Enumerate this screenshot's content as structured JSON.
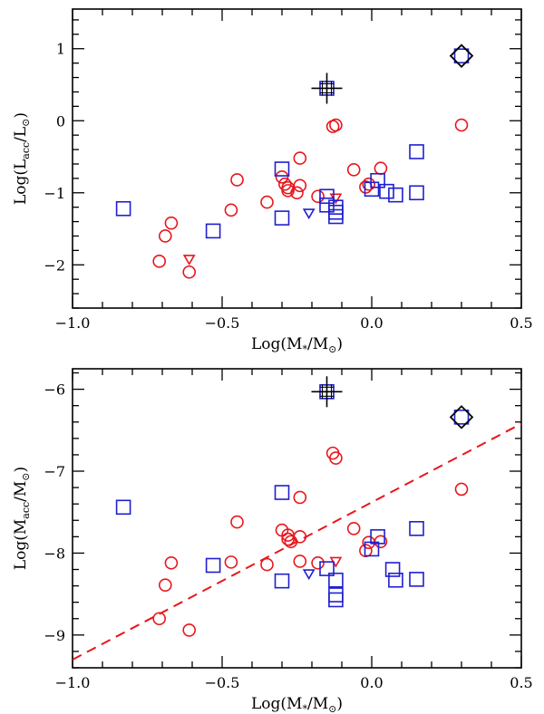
{
  "chart_data": [
    {
      "type": "scatter",
      "panel": "top",
      "xlabel": {
        "main": "Log(M",
        "sub": "*",
        "mid": "/M",
        "sub2": "⊙",
        "end": ")"
      },
      "ylabel": {
        "main": "Log(L",
        "sub": "acc",
        "mid": "/L",
        "sub2": "⊙",
        "end": ")"
      },
      "xlim": [
        -1.0,
        0.5
      ],
      "ylim": [
        -2.6,
        1.55
      ],
      "xticks": [
        -1.0,
        -0.5,
        0.0,
        0.5
      ],
      "xtick_labels": [
        "−1.0",
        "−0.5",
        "0.0",
        "0.5"
      ],
      "yticks": [
        -2,
        -1,
        0,
        1
      ],
      "ytick_labels": [
        "−2",
        "−1",
        "0",
        "1"
      ],
      "series": [
        {
          "name": "red circles",
          "marker": "circle",
          "color": "#e8161c",
          "x": [
            -0.71,
            -0.69,
            -0.67,
            -0.61,
            -0.47,
            -0.45,
            -0.35,
            -0.3,
            -0.29,
            -0.28,
            -0.28,
            -0.25,
            -0.24,
            -0.24,
            -0.18,
            -0.13,
            -0.12,
            -0.06,
            -0.02,
            -0.01,
            0.03,
            0.3
          ],
          "y": [
            -1.95,
            -1.6,
            -1.42,
            -2.1,
            -1.24,
            -0.82,
            -1.13,
            -0.78,
            -0.88,
            -0.93,
            -0.97,
            -1.0,
            -0.9,
            -0.52,
            -1.05,
            -0.08,
            -0.06,
            -0.68,
            -0.92,
            -0.88,
            -0.66,
            -0.06
          ]
        },
        {
          "name": "red triangles (upper limits)",
          "marker": "triangle-down",
          "color": "#e8161c",
          "x": [
            -0.61,
            -0.12
          ],
          "y": [
            -1.92,
            -1.07
          ]
        },
        {
          "name": "blue squares",
          "marker": "square",
          "color": "#1f1fd0",
          "x": [
            -0.83,
            -0.53,
            -0.3,
            -0.3,
            -0.15,
            -0.15,
            -0.12,
            -0.12,
            -0.12,
            0.0,
            0.02,
            0.05,
            0.08,
            0.15,
            0.15
          ],
          "y": [
            -1.22,
            -1.53,
            -0.67,
            -1.35,
            -1.05,
            -1.17,
            -1.2,
            -1.27,
            -1.33,
            -0.95,
            -0.83,
            -0.98,
            -1.03,
            -1.0,
            -0.43
          ]
        },
        {
          "name": "blue triangles (upper limits)",
          "marker": "triangle-down",
          "color": "#1f1fd0",
          "x": [
            -0.21
          ],
          "y": [
            -1.28
          ]
        },
        {
          "name": "highlighted: crosshair",
          "marker": "square-crosshair",
          "color": "#1f1fd0",
          "x": [
            -0.15
          ],
          "y": [
            0.45
          ]
        },
        {
          "name": "highlighted: diamond",
          "marker": "square-diamond",
          "color": "#1f1fd0",
          "x": [
            0.3
          ],
          "y": [
            0.9
          ]
        }
      ]
    },
    {
      "type": "scatter",
      "panel": "bottom",
      "xlabel": {
        "main": "Log(M",
        "sub": "*",
        "mid": "/M",
        "sub2": "⊙",
        "end": ")"
      },
      "ylabel": {
        "main": "Log(M",
        "sub": "acc",
        "mid": "/M",
        "sub2": "⊙",
        "end": ")"
      },
      "xlim": [
        -1.0,
        0.5
      ],
      "ylim": [
        -9.4,
        -5.75
      ],
      "xticks": [
        -1.0,
        -0.5,
        0.0,
        0.5
      ],
      "xtick_labels": [
        "−1.0",
        "−0.5",
        "0.0",
        "0.5"
      ],
      "yticks": [
        -9,
        -8,
        -7,
        -6
      ],
      "ytick_labels": [
        "−9",
        "−8",
        "−7",
        "−6"
      ],
      "fit_line": {
        "style": "dashed",
        "color": "#e8161c",
        "x": [
          -1.0,
          0.5
        ],
        "y": [
          -9.3,
          -6.42
        ]
      },
      "series": [
        {
          "name": "red circles",
          "marker": "circle",
          "color": "#e8161c",
          "x": [
            -0.71,
            -0.69,
            -0.67,
            -0.61,
            -0.47,
            -0.45,
            -0.35,
            -0.3,
            -0.28,
            -0.28,
            -0.27,
            -0.24,
            -0.24,
            -0.24,
            -0.18,
            -0.13,
            -0.12,
            -0.06,
            -0.02,
            -0.01,
            0.03,
            0.3
          ],
          "y": [
            -8.8,
            -8.39,
            -8.12,
            -8.94,
            -8.11,
            -7.62,
            -8.14,
            -7.72,
            -7.78,
            -7.83,
            -7.86,
            -7.8,
            -8.1,
            -7.32,
            -8.12,
            -6.78,
            -6.84,
            -7.7,
            -7.97,
            -7.87,
            -7.86,
            -7.22
          ]
        },
        {
          "name": "red triangles (upper limits)",
          "marker": "triangle-down",
          "color": "#e8161c",
          "x": [
            -0.12
          ],
          "y": [
            -8.1
          ]
        },
        {
          "name": "blue squares",
          "marker": "square",
          "color": "#1f1fd0",
          "x": [
            -0.83,
            -0.53,
            -0.3,
            -0.3,
            -0.15,
            -0.12,
            -0.12,
            -0.12,
            0.0,
            0.02,
            0.07,
            0.08,
            0.15,
            0.15
          ],
          "y": [
            -7.44,
            -8.15,
            -7.26,
            -8.34,
            -8.19,
            -8.33,
            -8.51,
            -8.57,
            -7.95,
            -7.8,
            -8.2,
            -8.33,
            -7.7,
            -8.32
          ]
        },
        {
          "name": "blue triangles (upper limits)",
          "marker": "triangle-down",
          "color": "#1f1fd0",
          "x": [
            -0.21
          ],
          "y": [
            -8.25
          ]
        },
        {
          "name": "highlighted: crosshair",
          "marker": "square-crosshair",
          "color": "#1f1fd0",
          "x": [
            -0.15
          ],
          "y": [
            -6.03
          ]
        },
        {
          "name": "highlighted: diamond",
          "marker": "square-diamond",
          "color": "#1f1fd0",
          "x": [
            0.3
          ],
          "y": [
            -6.34
          ]
        }
      ]
    }
  ]
}
